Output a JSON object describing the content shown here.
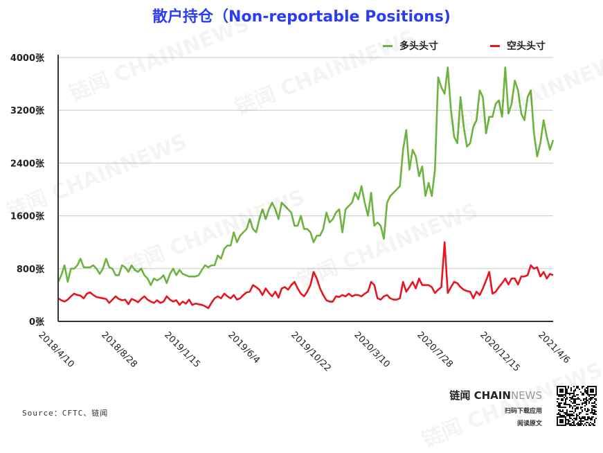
{
  "chart_data": {
    "type": "line",
    "title": "散户持仓（Non-reportable Positions)",
    "xlabel": "",
    "ylabel": "",
    "ylim": [
      0,
      4000
    ],
    "y_ticks": [
      "0张",
      "800张",
      "1600张",
      "2400张",
      "3200张",
      "4000张"
    ],
    "y_tick_values": [
      0,
      800,
      1600,
      2400,
      3200,
      4000
    ],
    "x_tick_labels": [
      "2018/4/10",
      "2018/8/28",
      "2019/1/15",
      "2019/6/4",
      "2019/10/22",
      "2020/3/10",
      "2020/7/28",
      "2020/12/15",
      "2021/4/6"
    ],
    "grid": "horizontal",
    "legend_position": "top-right",
    "series": [
      {
        "name": "多头头寸",
        "color": "#6db33f",
        "values": [
          600,
          700,
          850,
          600,
          800,
          800,
          850,
          950,
          820,
          820,
          820,
          850,
          800,
          720,
          800,
          950,
          820,
          800,
          700,
          700,
          850,
          820,
          750,
          850,
          780,
          750,
          800,
          700,
          650,
          550,
          650,
          620,
          650,
          700,
          580,
          720,
          800,
          700,
          780,
          720,
          700,
          680,
          680,
          680,
          700,
          780,
          850,
          820,
          850,
          850,
          1000,
          950,
          1100,
          1150,
          1150,
          1350,
          1200,
          1300,
          1350,
          1400,
          1550,
          1400,
          1350,
          1550,
          1700,
          1550,
          1700,
          1800,
          1700,
          1550,
          1800,
          1750,
          1700,
          1650,
          1450,
          1450,
          1600,
          1400,
          1400,
          1350,
          1200,
          1300,
          1300,
          1400,
          1650,
          1500,
          1550,
          1650,
          1700,
          1350,
          1700,
          1750,
          1800,
          1950,
          1850,
          2050,
          1800,
          1600,
          1950,
          1450,
          1500,
          1450,
          1250,
          1800,
          1900,
          1950,
          2000,
          2050,
          2600,
          2900,
          2300,
          2600,
          2500,
          2200,
          2350,
          1900,
          2100,
          1900,
          2300,
          3700,
          3550,
          3450,
          3850,
          3200,
          2800,
          2700,
          3400,
          2950,
          2650,
          2700,
          2950,
          3050,
          3500,
          3400,
          2850,
          3100,
          3100,
          3300,
          3350,
          3100,
          3850,
          3150,
          3300,
          3650,
          3500,
          3150,
          3050,
          3400,
          3500,
          2850,
          2500,
          2700,
          3050,
          2800,
          2600,
          2750
        ]
      },
      {
        "name": "空头头寸",
        "color": "#e8141e",
        "values": [
          350,
          320,
          300,
          330,
          380,
          420,
          400,
          390,
          350,
          420,
          440,
          400,
          370,
          360,
          350,
          340,
          280,
          330,
          380,
          340,
          320,
          330,
          260,
          340,
          320,
          290,
          340,
          380,
          330,
          300,
          280,
          320,
          280,
          300,
          380,
          330,
          300,
          320,
          250,
          300,
          270,
          330,
          250,
          270,
          260,
          250,
          230,
          200,
          280,
          350,
          380,
          350,
          420,
          380,
          350,
          400,
          330,
          350,
          400,
          440,
          450,
          550,
          520,
          480,
          400,
          500,
          430,
          380,
          450,
          360,
          500,
          520,
          480,
          550,
          600,
          500,
          420,
          380,
          450,
          550,
          750,
          650,
          500,
          400,
          320,
          300,
          300,
          380,
          370,
          400,
          380,
          420,
          380,
          400,
          400,
          380,
          420,
          450,
          600,
          550,
          350,
          330,
          380,
          400,
          350,
          330,
          330,
          350,
          600,
          450,
          520,
          600,
          500,
          650,
          550,
          550,
          550,
          520,
          430,
          480,
          520,
          1200,
          430,
          520,
          600,
          580,
          520,
          480,
          460,
          450,
          350,
          450,
          400,
          500,
          620,
          750,
          420,
          450,
          520,
          580,
          650,
          560,
          650,
          650,
          560,
          680,
          680,
          700,
          850,
          800,
          820,
          680,
          750,
          650,
          720,
          700
        ]
      }
    ]
  },
  "footer": {
    "source": "Source：CFTC、链闻",
    "brand_cn": "链闻 ",
    "brand_chain": "CHAIN",
    "brand_news": "NEWS",
    "qr_line1": "扫码下载应用",
    "qr_line2": "阅读原文"
  },
  "watermark": "链闻 CHAINNEWS"
}
